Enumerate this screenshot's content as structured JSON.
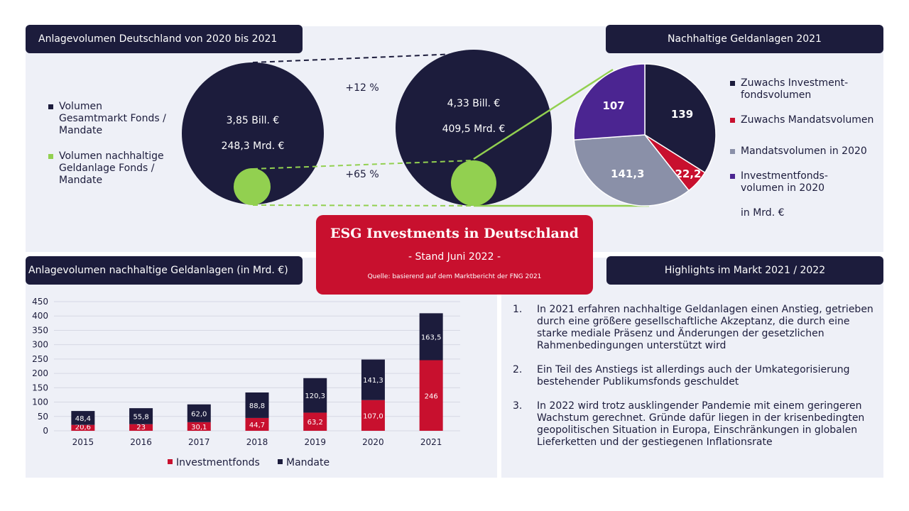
{
  "headers": {
    "volume": "Anlagevolumen Deutschland von 2020 bis 2021",
    "sustainable": "Nachhaltige Geldanlagen 2021",
    "bar": "Anlagevolumen nachhaltige Geldanlagen (in Mrd. €)",
    "highlights": "Highlights im Markt 2021 / 2022"
  },
  "colors": {
    "navy": "#1c1c3c",
    "green": "#92d050",
    "red": "#c8102e",
    "grey": "#8a90a8",
    "purple": "#4b2591"
  },
  "circles": {
    "legend": [
      {
        "label": "Volumen\nGesamtmarkt Fonds /\nMandate",
        "color": "#1c1c3c"
      },
      {
        "label": "Volumen nachhaltige\nGeldanlage Fonds /\nMandate",
        "color": "#92d050"
      }
    ],
    "c2020": {
      "total": "3,85 Bill. €",
      "sustainable": "248,3 Mrd. €"
    },
    "c2021": {
      "total": "4,33 Bill. €",
      "sustainable": "409,5 Mrd. €"
    },
    "growth_total": "+12 %",
    "growth_sustainable": "+65 %"
  },
  "esg": {
    "title": "ESG Investments in Deutschland",
    "subtitle": "- Stand Juni 2022 -",
    "source": "Quelle: basierend auf dem Marktbericht der FNG 2021"
  },
  "pie_legend": [
    {
      "label": "Zuwachs Investment-\nfondsvolumen",
      "color": "#1c1c3c"
    },
    {
      "label": "Zuwachs Mandatsvolumen",
      "color": "#c8102e"
    },
    {
      "label": "Mandatsvolumen in 2020",
      "color": "#8a90a8"
    },
    {
      "label": "Investmentfonds-\nvolumen in 2020",
      "color": "#4b2591"
    }
  ],
  "pie_unit": "in Mrd. €",
  "highlights": [
    {
      "num": "1.",
      "text": "In 2021 erfahren nachhaltige Geldanlagen einen Anstieg, getrieben durch eine größere gesellschaftliche Akzeptanz, die durch eine starke mediale Präsenz und Änderungen der gesetzlichen Rahmenbedingungen unterstützt wird"
    },
    {
      "num": "2.",
      "text": "Ein Teil des Anstiegs ist allerdings auch der Umkategorisierung bestehender Publikumsfonds geschuldet"
    },
    {
      "num": "3.",
      "text": "In 2022 wird trotz ausklingender Pandemie mit einem geringeren Wachstum gerechnet. Gründe dafür liegen in der krisenbedingten geopolitischen Situation in Europa, Einschränkungen in globalen Lieferketten und der gestiegenen Inflationsrate"
    }
  ],
  "chart_data": [
    {
      "type": "bar",
      "stacked": true,
      "categories": [
        "2015",
        "2016",
        "2017",
        "2018",
        "2019",
        "2020",
        "2021"
      ],
      "series": [
        {
          "name": "Investmentfonds",
          "color": "#c8102e",
          "values": [
            20.6,
            23,
            30.1,
            44.7,
            63.2,
            107.0,
            246
          ],
          "labels": [
            "20,6",
            "23",
            "30,1",
            "44,7",
            "63,2",
            "107,0",
            "246"
          ]
        },
        {
          "name": "Mandate",
          "color": "#1c1c3c",
          "values": [
            48.4,
            55.8,
            62.0,
            88.8,
            120.3,
            141.3,
            163.5
          ],
          "labels": [
            "48,4",
            "55,8",
            "62,0",
            "88,8",
            "120,3",
            "141,3",
            "163,5"
          ]
        }
      ],
      "yticks": [
        "0",
        "50",
        "100",
        "150",
        "200",
        "250",
        "300",
        "350",
        "400",
        "450"
      ],
      "ylim": [
        0,
        450
      ],
      "ylabel": "",
      "grid": true,
      "legend": "bottom"
    },
    {
      "type": "pie",
      "title": "Nachhaltige Geldanlagen 2021",
      "slices": [
        {
          "name": "Zuwachs Investmentfondsvolumen",
          "value": 139,
          "label": "139",
          "color": "#1c1c3c"
        },
        {
          "name": "Zuwachs Mandatsvolumen",
          "value": 22.2,
          "label": "22,2",
          "color": "#c8102e"
        },
        {
          "name": "Mandatsvolumen in 2020",
          "value": 141.3,
          "label": "141,3",
          "color": "#8a90a8"
        },
        {
          "name": "Investmentfondsvolumen in 2020",
          "value": 107,
          "label": "107",
          "color": "#4b2591"
        }
      ]
    }
  ]
}
